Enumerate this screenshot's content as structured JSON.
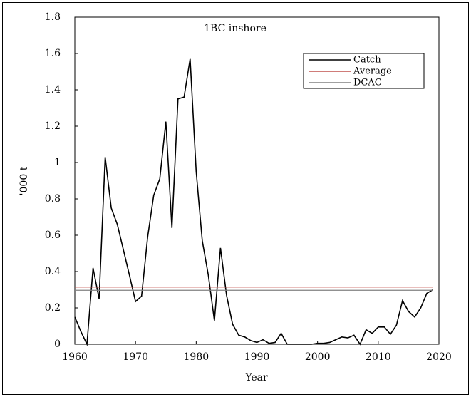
{
  "chart_data": {
    "type": "line",
    "title": "1BC inshore",
    "x_label": "Year",
    "y_label": "'000 t",
    "series": [
      {
        "name": "Catch",
        "color": "#000000",
        "x": [
          1960,
          1961,
          1962,
          1963,
          1964,
          1965,
          1966,
          1967,
          1968,
          1969,
          1970,
          1971,
          1972,
          1973,
          1974,
          1975,
          1976,
          1977,
          1978,
          1979,
          1980,
          1981,
          1982,
          1983,
          1984,
          1985,
          1986,
          1987,
          1988,
          1989,
          1990,
          1991,
          1992,
          1993,
          1994,
          1995,
          1996,
          1997,
          1998,
          1999,
          2000,
          2001,
          2002,
          2003,
          2004,
          2005,
          2006,
          2007,
          2008,
          2009,
          2010,
          2011,
          2012,
          2013,
          2014,
          2015,
          2016,
          2017,
          2018,
          2019
        ],
        "values": [
          0.15,
          0.07,
          0.0,
          0.42,
          0.25,
          1.03,
          0.75,
          0.66,
          0.52,
          0.38,
          0.235,
          0.265,
          0.59,
          0.82,
          0.91,
          1.225,
          0.64,
          1.35,
          1.36,
          1.57,
          0.95,
          0.57,
          0.38,
          0.13,
          0.53,
          0.27,
          0.11,
          0.05,
          0.04,
          0.02,
          0.01,
          0.025,
          0.005,
          0.01,
          0.06,
          0.0,
          0.0,
          0.0,
          0.0,
          0.0,
          0.005,
          0.005,
          0.01,
          0.025,
          0.04,
          0.035,
          0.05,
          0.0,
          0.08,
          0.06,
          0.095,
          0.095,
          0.055,
          0.105,
          0.24,
          0.18,
          0.15,
          0.2,
          0.28,
          0.3
        ]
      },
      {
        "name": "Average",
        "color": "#c0504d",
        "x": [
          1960,
          2019
        ],
        "values": [
          0.315,
          0.315
        ]
      },
      {
        "name": "DCAC",
        "color": "#808080",
        "x": [
          1960,
          2019
        ],
        "values": [
          0.297,
          0.297
        ]
      }
    ],
    "xlim": [
      1960,
      2020
    ],
    "xticks": [
      1960,
      1970,
      1980,
      1990,
      2000,
      2010,
      2020
    ],
    "ylim": [
      0,
      1.8
    ],
    "yticks": [
      0,
      0.2,
      0.4,
      0.6,
      0.8,
      1,
      1.2,
      1.4,
      1.6,
      1.8
    ],
    "legend": "upper right",
    "grid": false
  }
}
